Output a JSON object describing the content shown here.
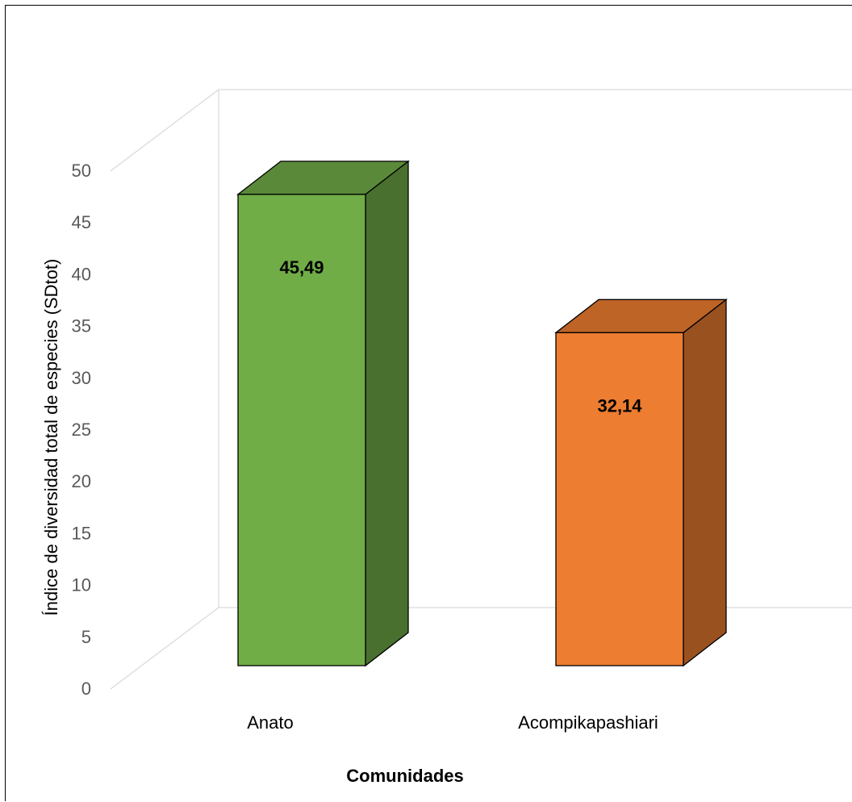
{
  "chart_data": {
    "type": "bar",
    "style": "3d-column",
    "categories": [
      "Anato",
      "Acompikapashiari"
    ],
    "values": [
      45.49,
      32.14
    ],
    "data_labels": [
      "45,49",
      "32,14"
    ],
    "colors": [
      "#70AD47",
      "#ED7D31"
    ],
    "xlabel": "Comunidades",
    "ylabel": "Índice de diversidad total de especies (SDtot)",
    "ylim": [
      0,
      50
    ],
    "yticks": [
      "0",
      "5",
      "10",
      "15",
      "20",
      "25",
      "30",
      "35",
      "40",
      "45",
      "50"
    ],
    "grid": true,
    "legend": "none"
  }
}
